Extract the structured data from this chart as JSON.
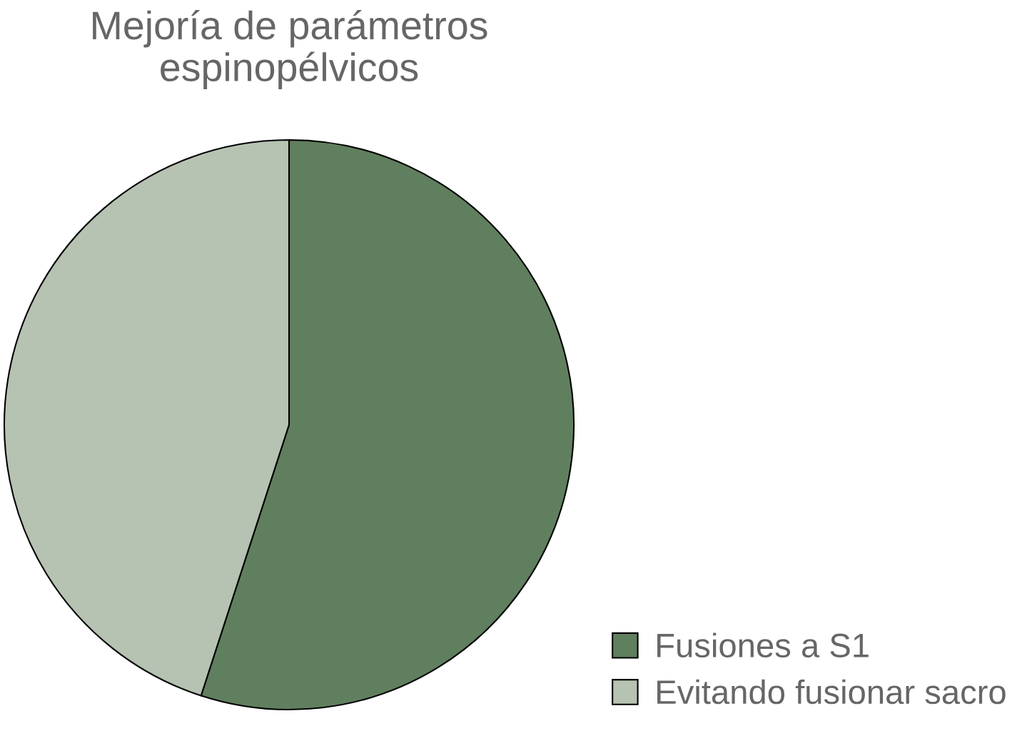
{
  "chart_data": {
    "type": "pie",
    "title": "Mejoría de parámetros espinopélvicos",
    "categories": [
      "Fusiones a S1",
      "Evitando fusionar sacro"
    ],
    "values": [
      55,
      45
    ],
    "colors": [
      "#607f5e",
      "#b6c2b2"
    ],
    "legend": "bottom right"
  }
}
